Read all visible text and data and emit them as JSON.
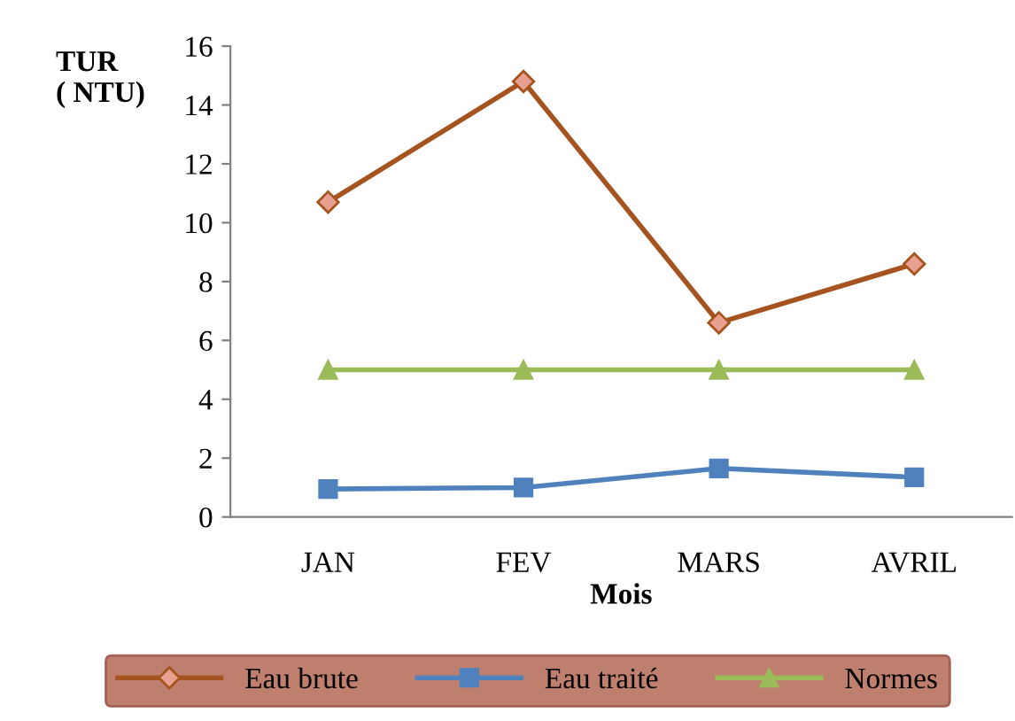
{
  "chart_data": {
    "type": "line",
    "ylabel": "TUR\n( NTU)",
    "xlabel": "Mois",
    "categories": [
      "JAN",
      "FEV",
      "MARS",
      "AVRIL"
    ],
    "series": [
      {
        "name": "Eau brute",
        "color": "#a5541f",
        "marker": "diamond",
        "values": [
          10.7,
          14.8,
          6.6,
          8.6
        ]
      },
      {
        "name": "Eau traité",
        "color": "#4f81bd",
        "marker": "square",
        "values": [
          0.95,
          1.0,
          1.65,
          1.35
        ]
      },
      {
        "name": "Normes",
        "color": "#9bbb59",
        "marker": "triangle",
        "values": [
          5,
          5,
          5,
          5
        ]
      }
    ],
    "ylim": [
      0,
      16
    ],
    "yticks": [
      0,
      2,
      4,
      6,
      8,
      10,
      12,
      14,
      16
    ],
    "grid": false,
    "legend": "bottom",
    "line_style": "solid"
  }
}
